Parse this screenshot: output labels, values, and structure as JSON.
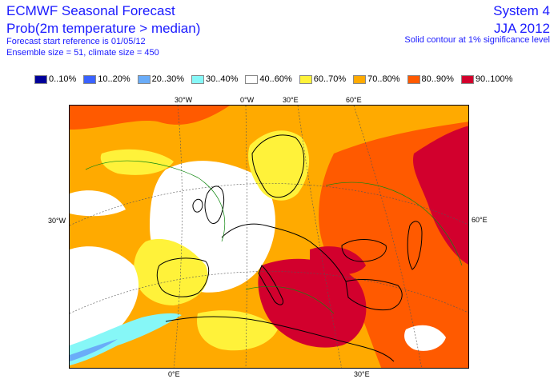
{
  "header": {
    "title": "ECMWF Seasonal Forecast",
    "subtitle": "Prob(2m temperature > median)",
    "start_ref": "Forecast start reference is 01/05/12",
    "ensemble": "Ensemble size = 51, climate size = 450",
    "system": "System 4",
    "period": "JJA 2012",
    "significance": "Solid contour at 1% significance level"
  },
  "legend": [
    {
      "label": "0..10%",
      "color": "#000099"
    },
    {
      "label": "10..20%",
      "color": "#3a62ff"
    },
    {
      "label": "20..30%",
      "color": "#6aacf8"
    },
    {
      "label": "30..40%",
      "color": "#86f7f7"
    },
    {
      "label": "40..60%",
      "color": "#ffffff"
    },
    {
      "label": "60..70%",
      "color": "#fff23a"
    },
    {
      "label": "70..80%",
      "color": "#ffaa00"
    },
    {
      "label": "80..90%",
      "color": "#ff5a00"
    },
    {
      "label": "90..100%",
      "color": "#d2002d"
    }
  ],
  "axes": {
    "top_ticks": [
      "30°W",
      "0°W",
      "30°E",
      "60°E"
    ],
    "bottom_ticks": [
      "0°E",
      "30°E"
    ],
    "left_tick": "30°W",
    "right_tick": "60°E"
  }
}
